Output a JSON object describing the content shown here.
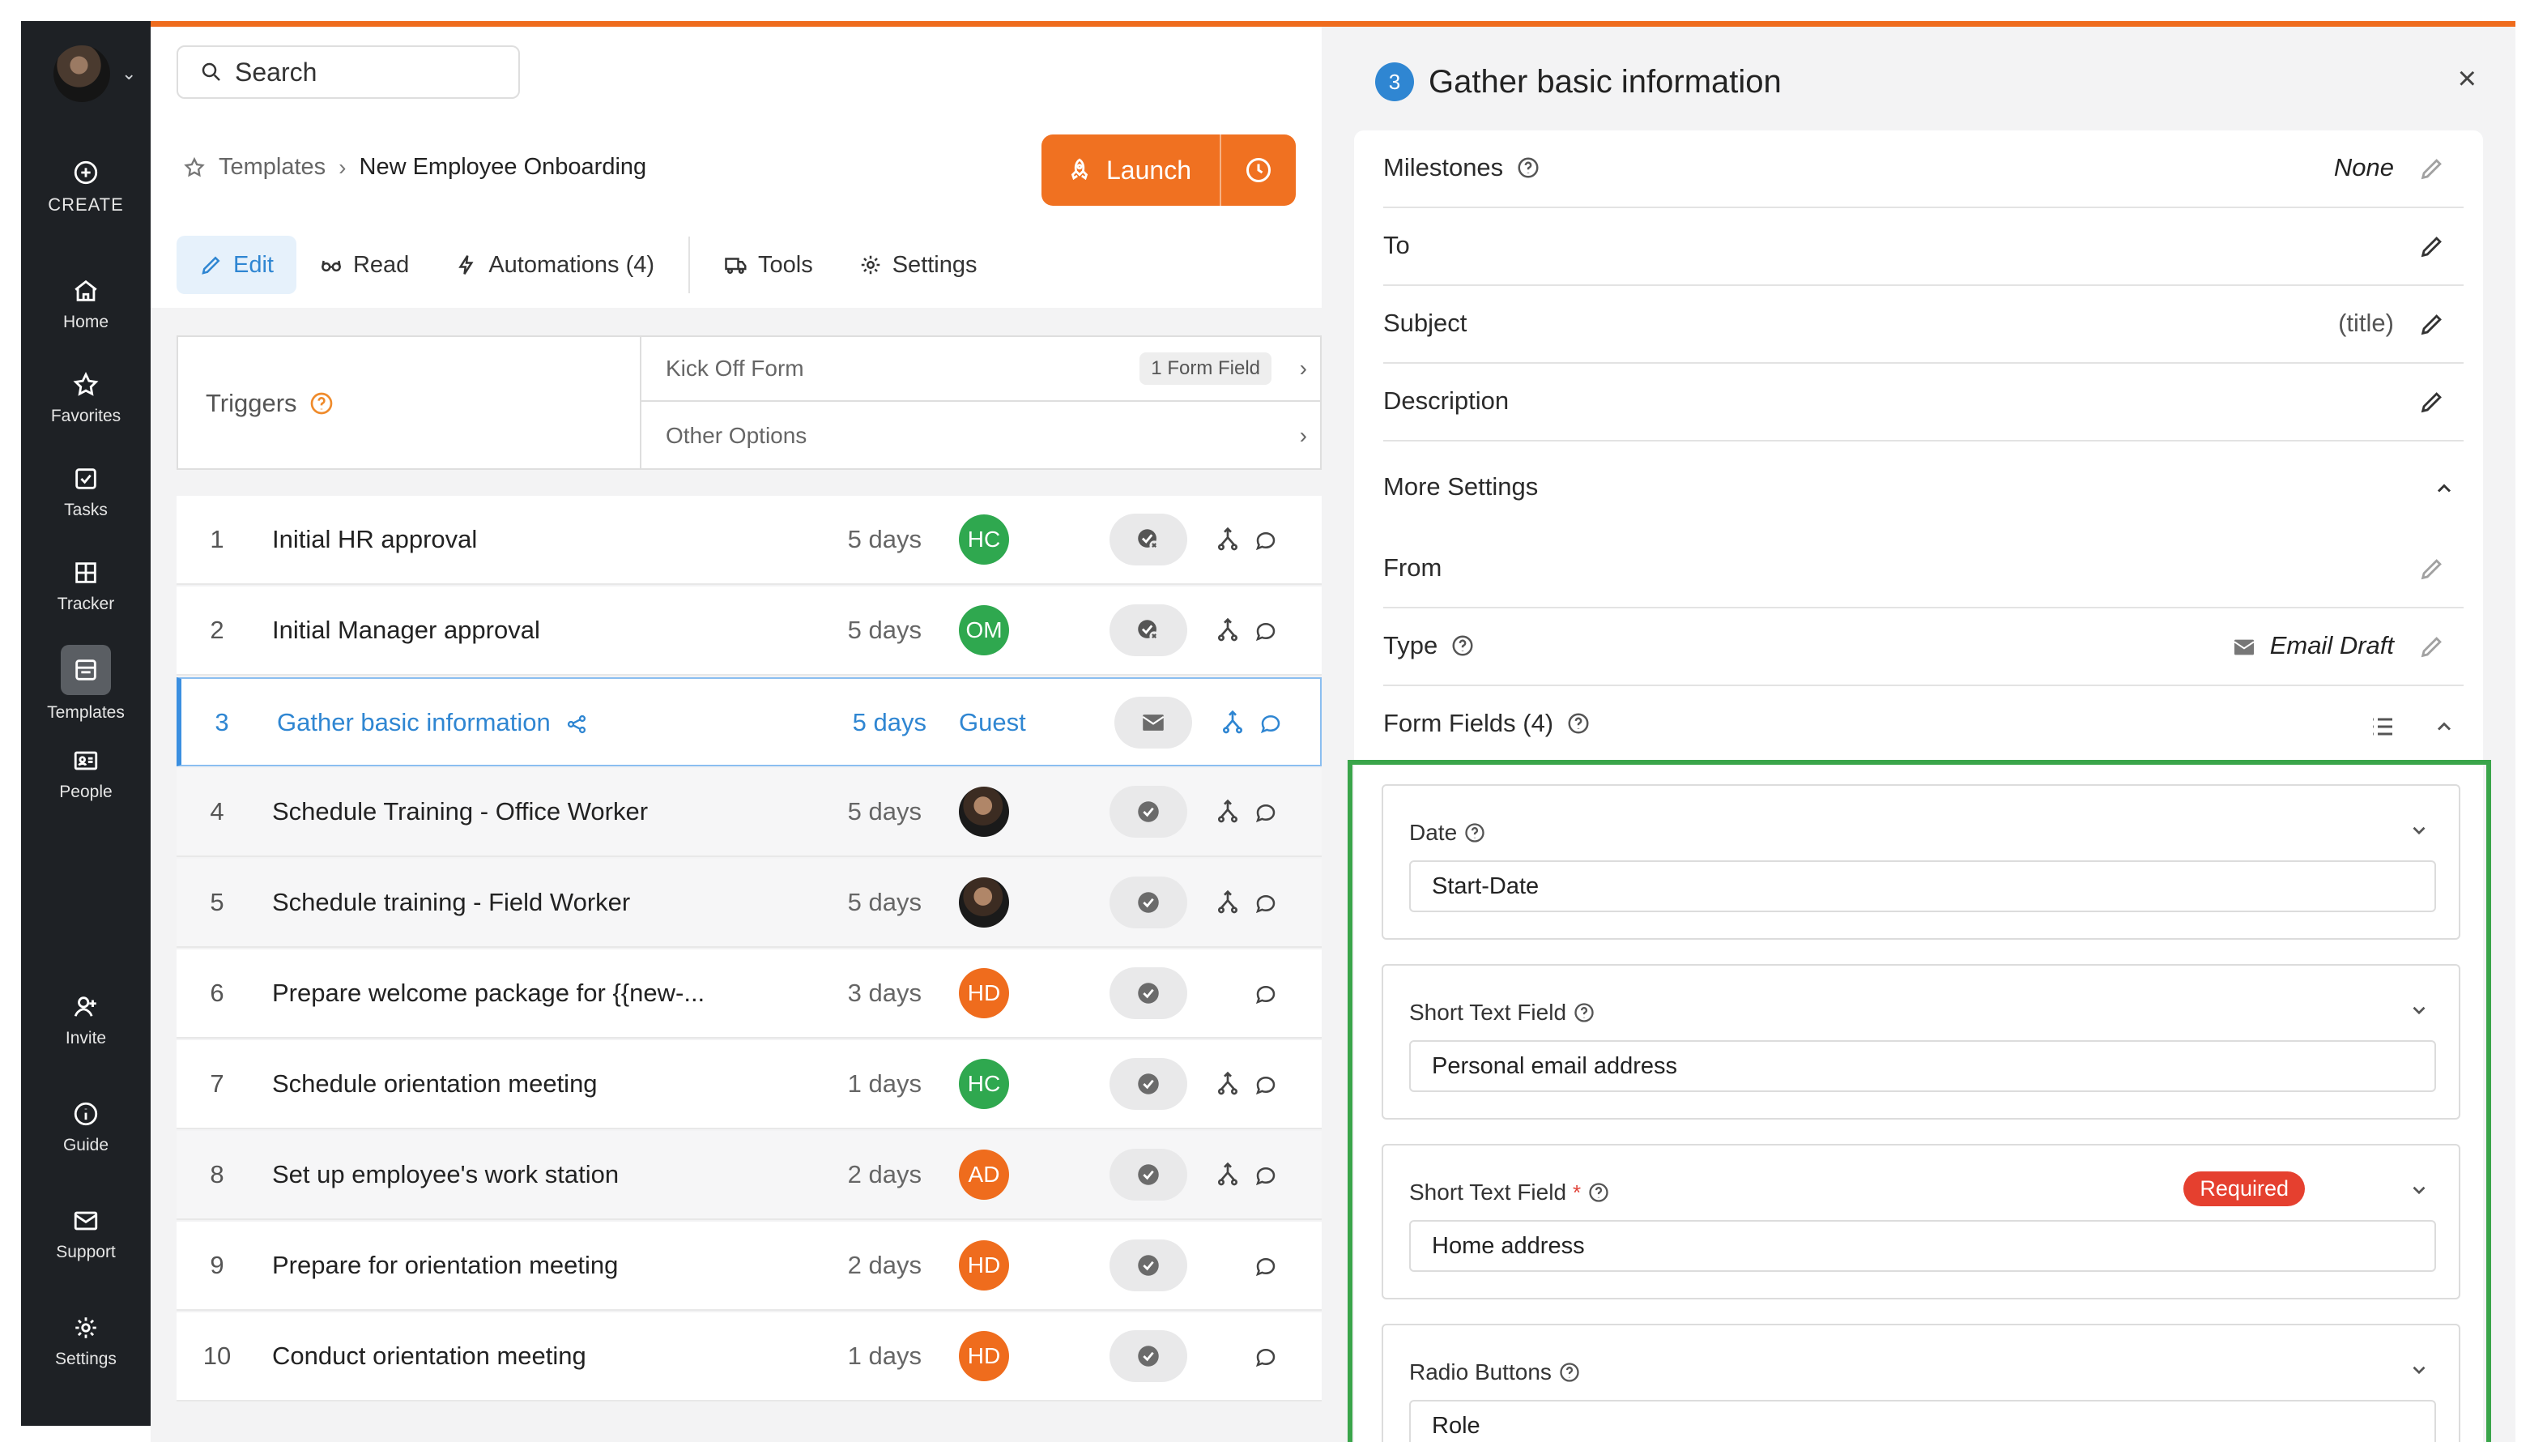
{
  "sidebar": {
    "items": [
      {
        "label": "CREATE",
        "icon": "plus-circle-icon"
      },
      {
        "label": "Home",
        "icon": "home-icon"
      },
      {
        "label": "Favorites",
        "icon": "star-icon"
      },
      {
        "label": "Tasks",
        "icon": "checkbox-icon"
      },
      {
        "label": "Tracker",
        "icon": "grid-icon"
      },
      {
        "label": "Templates",
        "icon": "templates-icon"
      },
      {
        "label": "People",
        "icon": "id-card-icon"
      },
      {
        "label": "Invite",
        "icon": "user-plus-icon"
      },
      {
        "label": "Guide",
        "icon": "info-icon"
      },
      {
        "label": "Support",
        "icon": "mail-icon"
      },
      {
        "label": "Settings",
        "icon": "gear-icon"
      }
    ]
  },
  "search": {
    "text": "Search"
  },
  "breadcrumb": {
    "root": "Templates",
    "current": "New Employee Onboarding"
  },
  "launch": {
    "label": "Launch"
  },
  "tabs": [
    {
      "label": "Edit",
      "icon": "pencil-icon"
    },
    {
      "label": "Read",
      "icon": "glasses-icon"
    },
    {
      "label": "Automations (4)",
      "icon": "bolt-icon"
    },
    {
      "label": "Tools",
      "icon": "truck-icon"
    },
    {
      "label": "Settings",
      "icon": "gear-icon"
    }
  ],
  "triggers": {
    "label": "Triggers",
    "kickoff": "Kick Off Form",
    "kickoff_badge": "1 Form Field",
    "other": "Other Options"
  },
  "tasks": [
    {
      "num": "1",
      "title": "Initial HR approval",
      "days": "5 days",
      "assignee": "HC",
      "color": "#2fa84f",
      "status": "approval"
    },
    {
      "num": "2",
      "title": "Initial Manager approval",
      "days": "5 days",
      "assignee": "OM",
      "color": "#2fa84f",
      "status": "approval"
    },
    {
      "num": "3",
      "title": "Gather basic information",
      "days": "5 days",
      "assignee": "Guest",
      "status": "email"
    },
    {
      "num": "4",
      "title": "Schedule Training - Office Worker",
      "days": "5 days",
      "assignee": "",
      "status": "check"
    },
    {
      "num": "5",
      "title": "Schedule training - Field Worker",
      "days": "5 days",
      "assignee": "",
      "status": "check"
    },
    {
      "num": "6",
      "title": "Prepare welcome package for {{new-...",
      "days": "3 days",
      "assignee": "HD",
      "color": "#ef6c1d",
      "status": "check"
    },
    {
      "num": "7",
      "title": "Schedule orientation meeting",
      "days": "1 days",
      "assignee": "HC",
      "color": "#2fa84f",
      "status": "check"
    },
    {
      "num": "8",
      "title": "Set up employee's work station",
      "days": "2 days",
      "assignee": "AD",
      "color": "#ef6c1d",
      "status": "check"
    },
    {
      "num": "9",
      "title": "Prepare for orientation meeting",
      "days": "2 days",
      "assignee": "HD",
      "color": "#ef6c1d",
      "status": "check"
    },
    {
      "num": "10",
      "title": "Conduct orientation meeting",
      "days": "1 days",
      "assignee": "HD",
      "color": "#ef6c1d",
      "status": "check"
    }
  ],
  "panel": {
    "step": "3",
    "title": "Gather basic information",
    "close": "×",
    "milestones_label": "Milestones",
    "milestones_value": "None",
    "to_label": "To",
    "subject_label": "Subject",
    "subject_value": "(title)",
    "description_label": "Description",
    "more_settings_label": "More Settings",
    "from_label": "From",
    "type_label": "Type",
    "type_value": "Email Draft",
    "form_fields_label": "Form Fields (4)"
  },
  "form_fields": [
    {
      "label": "Date",
      "value": "Start-Date",
      "required": false
    },
    {
      "label": "Short Text Field",
      "value": "Personal email address",
      "required": false
    },
    {
      "label": "Short Text Field",
      "value": "Home address",
      "required": true,
      "badge": "Required",
      "star": "*"
    },
    {
      "label": "Radio Buttons",
      "value": "Role",
      "required": false
    }
  ],
  "colors": {
    "accent": "#ef6c1d",
    "primary": "#2f86d2",
    "green": "#2fa84f",
    "highlight": "#3aa54a",
    "required": "#e5402f"
  }
}
